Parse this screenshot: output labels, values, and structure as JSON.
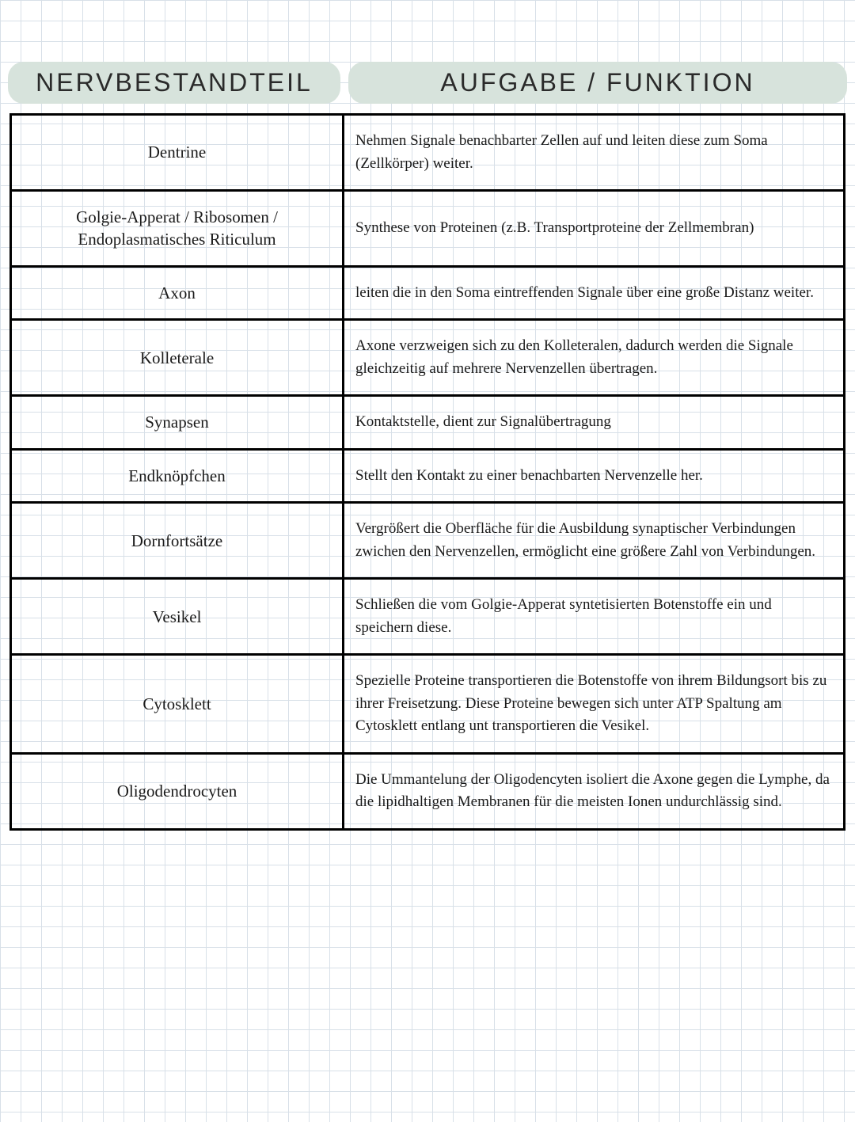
{
  "table": {
    "headers": {
      "left": "NERVBESTANDTEIL",
      "right": "AUFGABE / FUNKTION"
    },
    "header_bg_color": "#d7e3dc",
    "header_font_color": "#2a2a2a",
    "header_font_size_pt": 32,
    "cell_font_color": "#1a1a1a",
    "border_color": "#000000",
    "background_color": "#ffffff",
    "grid_color": "#d8e0e8",
    "rows": [
      {
        "term": "Dentrine",
        "def": "Nehmen Signale benachbarter Zellen auf und leiten diese zum Soma (Zellkörper) weiter."
      },
      {
        "term": "Golgie-Apperat / Ribosomen / Endoplasmatisches Riticulum",
        "def": "Synthese von Proteinen (z.B. Transportproteine der Zellmembran)"
      },
      {
        "term": "Axon",
        "def": "leiten die in den Soma eintreffenden Signale über eine große Distanz weiter."
      },
      {
        "term": "Kolleterale",
        "def": "Axone verzweigen sich zu den Kolleteralen, dadurch werden die Signale gleichzeitig auf mehrere Nervenzellen übertragen."
      },
      {
        "term": "Synapsen",
        "def": "Kontaktstelle, dient zur Signalübertragung"
      },
      {
        "term": "Endknöpfchen",
        "def": "Stellt den Kontakt zu einer benachbarten Nervenzelle her."
      },
      {
        "term": "Dornfortsätze",
        "def": "Vergrößert die Oberfläche für die Ausbildung synaptischer Verbindungen zwichen den Nervenzellen, ermöglicht eine größere Zahl von Verbindungen."
      },
      {
        "term": "Vesikel",
        "def": "Schließen die vom Golgie-Apperat syntetisierten Botenstoffe ein und speichern diese."
      },
      {
        "term": "Cytosklett",
        "def": "Spezielle Proteine transportieren die Botenstoffe von ihrem Bildungsort bis zu ihrer Freisetzung. Diese Proteine bewegen sich unter ATP Spaltung am Cytosklett entlang unt transportieren die Vesikel."
      },
      {
        "term": "Oligodendrocyten",
        "def": "Die Ummantelung der Oligodencyten isoliert die Axone gegen die Lymphe, da die lipidhaltigen Membranen für die meisten Ionen undurchlässig sind."
      }
    ]
  }
}
